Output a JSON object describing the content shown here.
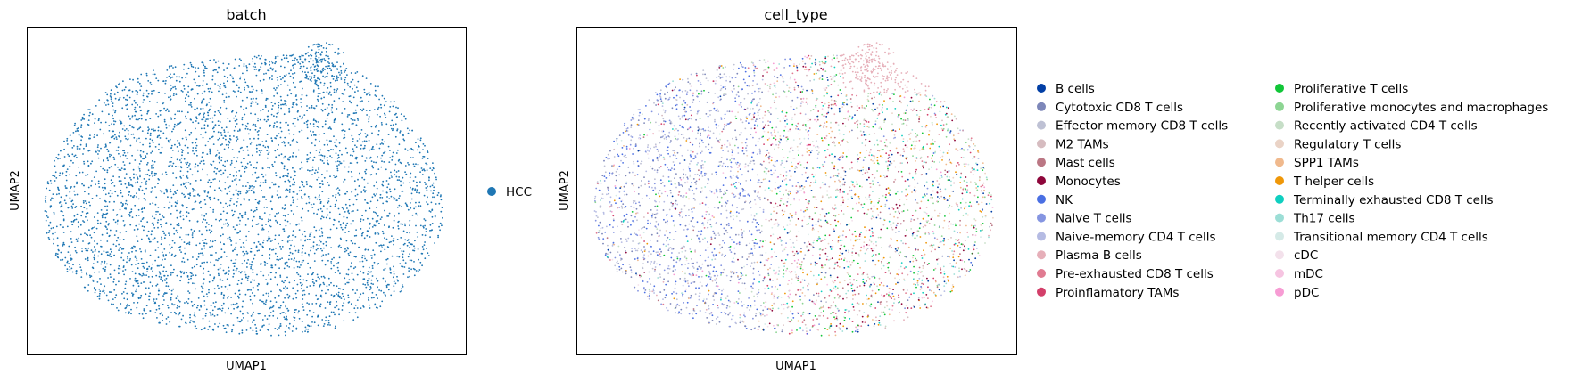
{
  "chart_data": [
    {
      "type": "scatter",
      "title": "batch",
      "xlabel": "UMAP1",
      "ylabel": "UMAP2",
      "xlim": [
        0,
        10
      ],
      "ylim": [
        0,
        10
      ],
      "ticks_shown": false,
      "grid": false,
      "legend_position": "right",
      "series": [
        {
          "name": "HCC",
          "color": "#1f77b4"
        }
      ]
    },
    {
      "type": "scatter",
      "title": "cell_type",
      "xlabel": "UMAP1",
      "ylabel": "UMAP2",
      "xlim": [
        0,
        10
      ],
      "ylim": [
        0,
        10
      ],
      "ticks_shown": false,
      "grid": false,
      "legend_position": "right",
      "legend_columns": 2,
      "series": [
        {
          "name": "B cells",
          "color": "#023fa5"
        },
        {
          "name": "Cytotoxic CD8 T cells",
          "color": "#7d87b9"
        },
        {
          "name": "Effector memory CD8 T cells",
          "color": "#bec1d4"
        },
        {
          "name": "M2 TAMs",
          "color": "#d6bcc0"
        },
        {
          "name": "Mast cells",
          "color": "#bb7784"
        },
        {
          "name": "Monocytes",
          "color": "#8e063b"
        },
        {
          "name": "NK",
          "color": "#4a6fe3"
        },
        {
          "name": "Naive T cells",
          "color": "#8595e1"
        },
        {
          "name": "Naive-memory CD4 T cells",
          "color": "#b5bbe3"
        },
        {
          "name": "Plasma B cells",
          "color": "#e6afb9"
        },
        {
          "name": "Pre-exhausted CD8 T cells",
          "color": "#e07b91"
        },
        {
          "name": "Proinflamatory TAMs",
          "color": "#d33f6a"
        },
        {
          "name": "Proliferative T cells",
          "color": "#11c638"
        },
        {
          "name": "Proliferative monocytes and macrophages",
          "color": "#8dd593"
        },
        {
          "name": "Recently activated CD4 T cells",
          "color": "#c6dec7"
        },
        {
          "name": "Regulatory T cells",
          "color": "#ead3c6"
        },
        {
          "name": "SPP1 TAMs",
          "color": "#f0b98d"
        },
        {
          "name": "T helper cells",
          "color": "#ef9708"
        },
        {
          "name": "Terminally exhausted CD8 T cells",
          "color": "#0fcfc0"
        },
        {
          "name": "Th17 cells",
          "color": "#9cded6"
        },
        {
          "name": "Transitional memory CD4 T cells",
          "color": "#d5eae7"
        },
        {
          "name": "cDC",
          "color": "#f3e1eb"
        },
        {
          "name": "mDC",
          "color": "#f6c4e1"
        },
        {
          "name": "pDC",
          "color": "#f79cd4"
        }
      ]
    }
  ]
}
